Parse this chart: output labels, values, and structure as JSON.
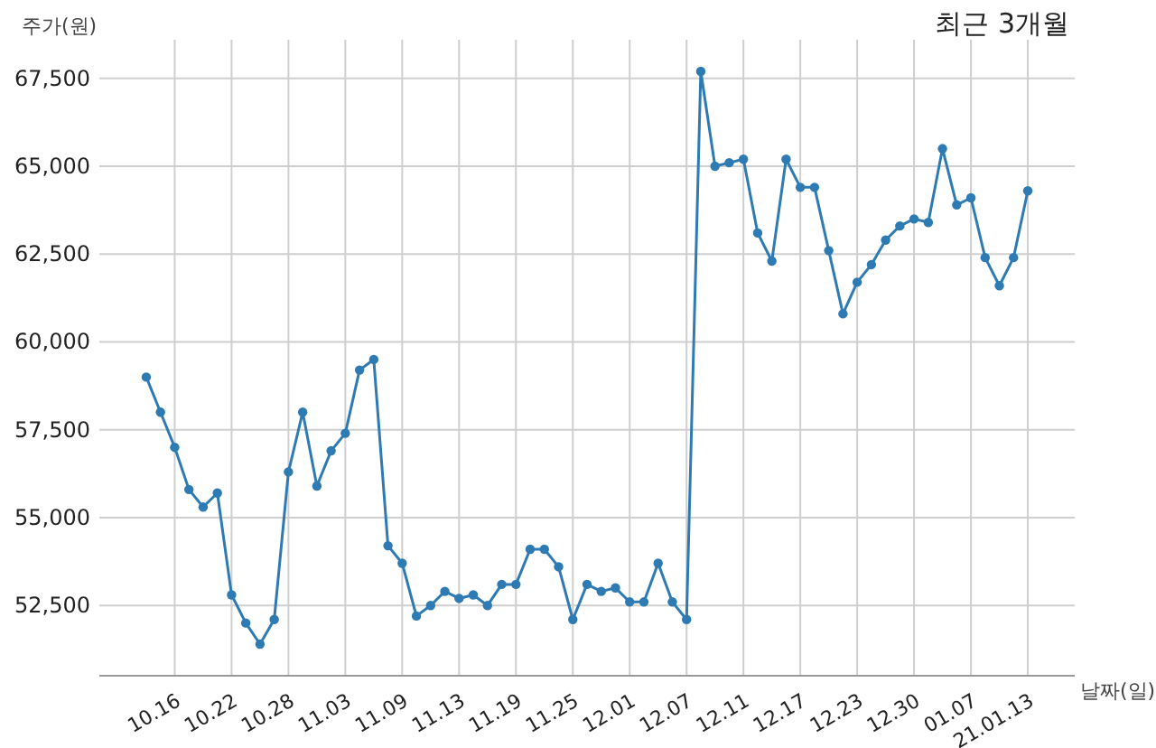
{
  "chart_data": {
    "type": "line",
    "title": "최근 3개월",
    "ylabel": "주가(원)",
    "xlabel": "날짜(일)",
    "categories": [
      null,
      null,
      "10.16",
      null,
      null,
      null,
      "10.22",
      null,
      null,
      null,
      "10.28",
      null,
      null,
      null,
      "11.03",
      null,
      null,
      null,
      "11.09",
      null,
      null,
      null,
      "11.13",
      null,
      null,
      null,
      "11.19",
      null,
      null,
      null,
      "11.25",
      null,
      null,
      null,
      "12.01",
      null,
      null,
      null,
      "12.07",
      null,
      null,
      null,
      "12.11",
      null,
      null,
      null,
      "12.17",
      null,
      null,
      null,
      "12.23",
      null,
      null,
      null,
      "12.30",
      null,
      null,
      null,
      "01.07",
      null,
      null,
      null,
      "21.01.13"
    ],
    "series": [
      {
        "color": "#2e7bb4",
        "values": [
          59000,
          58000,
          57000,
          55800,
          55300,
          55700,
          52800,
          52000,
          51400,
          52100,
          56300,
          58000,
          55900,
          56900,
          57400,
          59200,
          59500,
          54200,
          53700,
          52200,
          52500,
          52900,
          52700,
          52800,
          52500,
          53100,
          53100,
          54100,
          54100,
          53600,
          52100,
          53100,
          52900,
          53000,
          52600,
          52600,
          53700,
          52600,
          52100,
          67700,
          65000,
          65100,
          65200,
          63100,
          62300,
          65200,
          64400,
          64400,
          62600,
          60800,
          61700,
          62200,
          62900,
          63300,
          63500,
          63400,
          65500,
          63900,
          64100,
          62400,
          61600,
          62400,
          64300
        ]
      }
    ],
    "ylim": [
      50500,
      68600
    ],
    "yticks": [
      {
        "value": 52500,
        "label": "52,500"
      },
      {
        "value": 55000,
        "label": "55,000"
      },
      {
        "value": 57500,
        "label": "57,500"
      },
      {
        "value": 60000,
        "label": "60,000"
      },
      {
        "value": 62500,
        "label": "62,500"
      },
      {
        "value": 65000,
        "label": "65,000"
      },
      {
        "value": 67500,
        "label": "67,500"
      }
    ],
    "grid": true,
    "marker": "circle"
  }
}
